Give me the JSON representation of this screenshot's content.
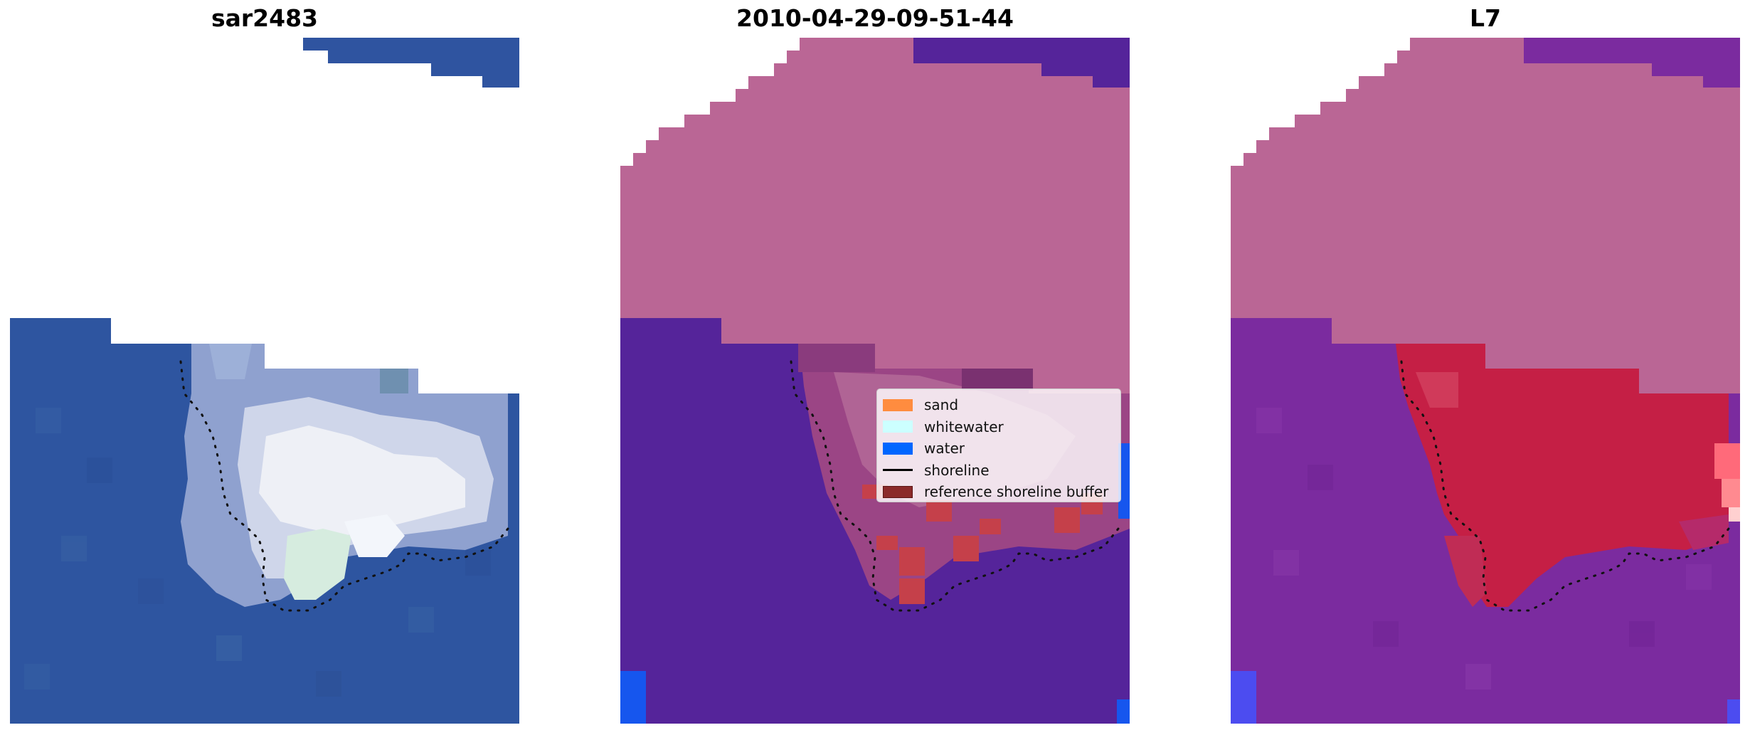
{
  "panels": [
    {
      "title": "sar2483"
    },
    {
      "title": "2010-04-29-09-51-44"
    },
    {
      "title": "L7"
    }
  ],
  "legend": {
    "items": [
      {
        "label": "sand",
        "type": "patch",
        "color": "#ff8c3f"
      },
      {
        "label": "whitewater",
        "type": "patch",
        "color": "#ccffff"
      },
      {
        "label": "water",
        "type": "patch",
        "color": "#0066ff"
      },
      {
        "label": "shoreline",
        "type": "line",
        "color": "#000000"
      },
      {
        "label": "reference shoreline buffer",
        "type": "patch",
        "color": "#8b2a2a"
      }
    ]
  },
  "colors": {
    "land": "#ba6695",
    "water_purple": "#55249a",
    "water_blue": "#2e55a0",
    "buffer_red": "#c51f45",
    "whitewater": "#e9ecf4"
  }
}
